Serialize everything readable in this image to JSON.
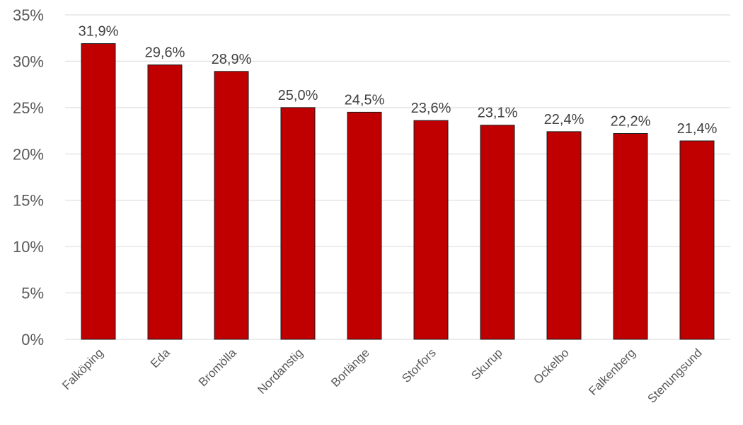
{
  "chart_data": {
    "type": "bar",
    "categories": [
      "Falköping",
      "Eda",
      "Bromölla",
      "Nordanstig",
      "Borlänge",
      "Storfors",
      "Skurup",
      "Ockelbo",
      "Falkenberg",
      "Stenungsund"
    ],
    "values": [
      31.9,
      29.6,
      28.9,
      25.0,
      24.5,
      23.6,
      23.1,
      22.4,
      22.2,
      21.4
    ],
    "data_labels": [
      "31,9%",
      "29,6%",
      "28,9%",
      "25,0%",
      "24,5%",
      "23,6%",
      "23,1%",
      "22,4%",
      "22,2%",
      "21,4%"
    ],
    "ylim": [
      0,
      35
    ],
    "yticks": [
      0,
      5,
      10,
      15,
      20,
      25,
      30,
      35
    ],
    "ytick_labels": [
      "0%",
      "5%",
      "10%",
      "15%",
      "20%",
      "25%",
      "30%",
      "35%"
    ],
    "grid": true,
    "legend": "none",
    "colors": {
      "bar": "#c00000",
      "bar_border": "#1a1a1a",
      "grid": "#d9d9d9"
    }
  }
}
